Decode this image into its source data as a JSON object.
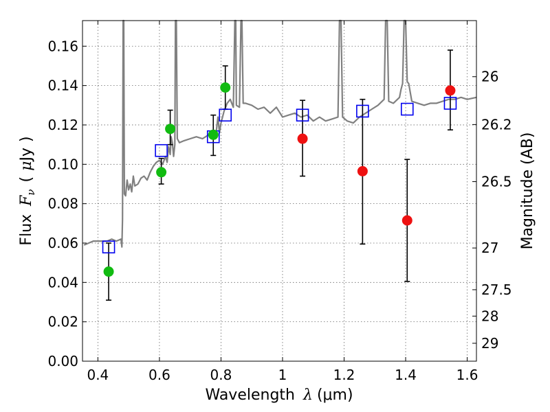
{
  "chart_data": {
    "type": "scatter",
    "xlabel": "Wavelength  λ (μm)",
    "ylabel": "Flux  F_ν  ( μJy )",
    "ylabel_parts": {
      "prefix": "Flux",
      "fsym": "F",
      "fsub": "ν",
      "open": "(",
      "mu": "μ",
      "unit": "Jy",
      "close": ")"
    },
    "xlabel_parts": {
      "prefix": "Wavelength",
      "lam": "λ",
      "unit": "(μm)"
    },
    "y2label": "Magnitude (AB)",
    "xlim": [
      0.35,
      1.63
    ],
    "ylim": [
      0.0,
      0.173
    ],
    "grid": true,
    "x_ticks": [
      0.4,
      0.6,
      0.8,
      1.0,
      1.2,
      1.4,
      1.6
    ],
    "x_tick_labels": [
      "0.4",
      "0.6",
      "0.8",
      "1",
      "1.2",
      "1.4",
      "1.6"
    ],
    "y_ticks": [
      0.0,
      0.02,
      0.04,
      0.06,
      0.08,
      0.1,
      0.12,
      0.14,
      0.16
    ],
    "y_tick_labels": [
      "0.00",
      "0.02",
      "0.04",
      "0.06",
      "0.08",
      "0.10",
      "0.12",
      "0.14",
      "0.16"
    ],
    "y2_ticks": [
      {
        "label": "26",
        "flux": 0.1445
      },
      {
        "label": "26.2",
        "flux": 0.1202
      },
      {
        "label": "26.5",
        "flux": 0.0912
      },
      {
        "label": "27",
        "flux": 0.0575
      },
      {
        "label": "27.5",
        "flux": 0.0363
      },
      {
        "label": "28",
        "flux": 0.0229
      },
      {
        "label": "29",
        "flux": 0.0091
      }
    ],
    "series": [
      {
        "marker": "square-open",
        "color": "#0000ee",
        "points": [
          {
            "x": 0.435,
            "y": 0.058
          },
          {
            "x": 0.606,
            "y": 0.107
          },
          {
            "x": 0.775,
            "y": 0.114
          },
          {
            "x": 0.814,
            "y": 0.125
          },
          {
            "x": 1.065,
            "y": 0.125
          },
          {
            "x": 1.26,
            "y": 0.127
          },
          {
            "x": 1.405,
            "y": 0.128
          },
          {
            "x": 1.545,
            "y": 0.131
          }
        ]
      },
      {
        "marker": "circle-filled",
        "color": "#11bb11",
        "points": [
          {
            "x": 0.435,
            "y": 0.0455,
            "ylo": 0.031,
            "yhi": 0.06
          },
          {
            "x": 0.606,
            "y": 0.096,
            "ylo": 0.09,
            "yhi": 0.103
          },
          {
            "x": 0.635,
            "y": 0.118,
            "ylo": 0.11,
            "yhi": 0.1275
          },
          {
            "x": 0.775,
            "y": 0.115,
            "ylo": 0.1045,
            "yhi": 0.125
          },
          {
            "x": 0.814,
            "y": 0.139,
            "ylo": 0.128,
            "yhi": 0.15
          }
        ]
      },
      {
        "marker": "circle-filled",
        "color": "#ee1111",
        "points": [
          {
            "x": 1.065,
            "y": 0.113,
            "ylo": 0.094,
            "yhi": 0.1325
          },
          {
            "x": 1.26,
            "y": 0.0965,
            "ylo": 0.0595,
            "yhi": 0.133
          },
          {
            "x": 1.405,
            "y": 0.0715,
            "ylo": 0.0405,
            "yhi": 0.1025
          },
          {
            "x": 1.545,
            "y": 0.1375,
            "ylo": 0.1175,
            "yhi": 0.158
          }
        ]
      }
    ],
    "spectrum": {
      "color": "#808080",
      "points": [
        [
          0.355,
          0.059
        ],
        [
          0.37,
          0.06
        ],
        [
          0.385,
          0.061
        ],
        [
          0.4,
          0.061
        ],
        [
          0.415,
          0.061
        ],
        [
          0.43,
          0.061
        ],
        [
          0.445,
          0.062
        ],
        [
          0.46,
          0.061
        ],
        [
          0.475,
          0.062
        ],
        [
          0.478,
          0.058
        ],
        [
          0.48,
          0.072
        ],
        [
          0.482,
          0.173
        ],
        [
          0.484,
          0.173
        ],
        [
          0.486,
          0.085
        ],
        [
          0.49,
          0.084
        ],
        [
          0.495,
          0.092
        ],
        [
          0.5,
          0.087
        ],
        [
          0.505,
          0.09
        ],
        [
          0.51,
          0.086
        ],
        [
          0.515,
          0.094
        ],
        [
          0.52,
          0.089
        ],
        [
          0.53,
          0.09
        ],
        [
          0.54,
          0.093
        ],
        [
          0.55,
          0.094
        ],
        [
          0.56,
          0.092
        ],
        [
          0.57,
          0.096
        ],
        [
          0.58,
          0.099
        ],
        [
          0.59,
          0.101
        ],
        [
          0.6,
          0.102
        ],
        [
          0.61,
          0.1
        ],
        [
          0.62,
          0.104
        ],
        [
          0.625,
          0.101
        ],
        [
          0.63,
          0.109
        ],
        [
          0.635,
          0.105
        ],
        [
          0.638,
          0.114
        ],
        [
          0.642,
          0.111
        ],
        [
          0.646,
          0.104
        ],
        [
          0.65,
          0.11
        ],
        [
          0.652,
          0.173
        ],
        [
          0.655,
          0.173
        ],
        [
          0.658,
          0.113
        ],
        [
          0.665,
          0.111
        ],
        [
          0.68,
          0.112
        ],
        [
          0.7,
          0.113
        ],
        [
          0.72,
          0.114
        ],
        [
          0.74,
          0.113
        ],
        [
          0.76,
          0.115
        ],
        [
          0.775,
          0.113
        ],
        [
          0.785,
          0.117
        ],
        [
          0.79,
          0.124
        ],
        [
          0.795,
          0.116
        ],
        [
          0.8,
          0.121
        ],
        [
          0.805,
          0.124
        ],
        [
          0.81,
          0.127
        ],
        [
          0.815,
          0.129
        ],
        [
          0.82,
          0.131
        ],
        [
          0.83,
          0.133
        ],
        [
          0.84,
          0.129
        ],
        [
          0.845,
          0.173
        ],
        [
          0.848,
          0.173
        ],
        [
          0.85,
          0.13
        ],
        [
          0.86,
          0.129
        ],
        [
          0.865,
          0.173
        ],
        [
          0.868,
          0.173
        ],
        [
          0.872,
          0.131
        ],
        [
          0.88,
          0.131
        ],
        [
          0.9,
          0.13
        ],
        [
          0.92,
          0.128
        ],
        [
          0.94,
          0.129
        ],
        [
          0.96,
          0.126
        ],
        [
          0.98,
          0.129
        ],
        [
          1.0,
          0.124
        ],
        [
          1.02,
          0.125
        ],
        [
          1.04,
          0.126
        ],
        [
          1.06,
          0.124
        ],
        [
          1.08,
          0.125
        ],
        [
          1.1,
          0.122
        ],
        [
          1.12,
          0.124
        ],
        [
          1.14,
          0.122
        ],
        [
          1.16,
          0.123
        ],
        [
          1.18,
          0.124
        ],
        [
          1.185,
          0.173
        ],
        [
          1.19,
          0.173
        ],
        [
          1.195,
          0.124
        ],
        [
          1.21,
          0.122
        ],
        [
          1.23,
          0.121
        ],
        [
          1.25,
          0.124
        ],
        [
          1.27,
          0.126
        ],
        [
          1.29,
          0.128
        ],
        [
          1.31,
          0.13
        ],
        [
          1.33,
          0.133
        ],
        [
          1.335,
          0.173
        ],
        [
          1.34,
          0.173
        ],
        [
          1.345,
          0.132
        ],
        [
          1.36,
          0.131
        ],
        [
          1.38,
          0.134
        ],
        [
          1.385,
          0.138
        ],
        [
          1.39,
          0.141
        ],
        [
          1.395,
          0.173
        ],
        [
          1.4,
          0.173
        ],
        [
          1.405,
          0.142
        ],
        [
          1.41,
          0.141
        ],
        [
          1.42,
          0.132
        ],
        [
          1.44,
          0.131
        ],
        [
          1.46,
          0.13
        ],
        [
          1.48,
          0.131
        ],
        [
          1.5,
          0.131
        ],
        [
          1.52,
          0.132
        ],
        [
          1.54,
          0.133
        ],
        [
          1.56,
          0.133
        ],
        [
          1.58,
          0.134
        ],
        [
          1.6,
          0.133
        ],
        [
          1.63,
          0.134
        ]
      ]
    }
  }
}
